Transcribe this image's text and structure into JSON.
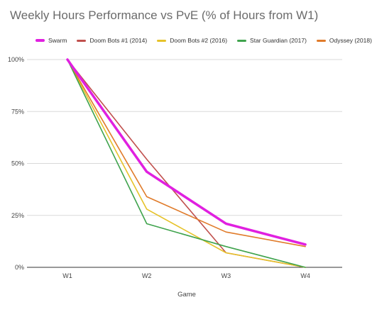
{
  "chart_data": {
    "type": "line",
    "title": "Weekly Hours Performance vs PvE (% of Hours from W1)",
    "xlabel": "Game",
    "ylabel": "",
    "categories": [
      "W1",
      "W2",
      "W3",
      "W4"
    ],
    "y_ticks": [
      "0%",
      "25%",
      "50%",
      "75%",
      "100%"
    ],
    "ylim": [
      0,
      100
    ],
    "grid": true,
    "legend_position": "top",
    "series": [
      {
        "name": "Swarm",
        "color": "#e020e0",
        "values": [
          100,
          46,
          21,
          11
        ]
      },
      {
        "name": "Doom Bots #1 (2014)",
        "color": "#c0504d",
        "values": [
          100,
          52,
          7,
          0
        ]
      },
      {
        "name": "Doom Bots #2 (2016)",
        "color": "#e6c229",
        "values": [
          100,
          28,
          7,
          0
        ]
      },
      {
        "name": "Star Guardian (2017)",
        "color": "#3fa34d",
        "values": [
          100,
          21,
          10,
          0
        ]
      },
      {
        "name": "Odyssey (2018)",
        "color": "#e07b2a",
        "values": [
          100,
          34,
          17,
          10
        ]
      }
    ]
  }
}
